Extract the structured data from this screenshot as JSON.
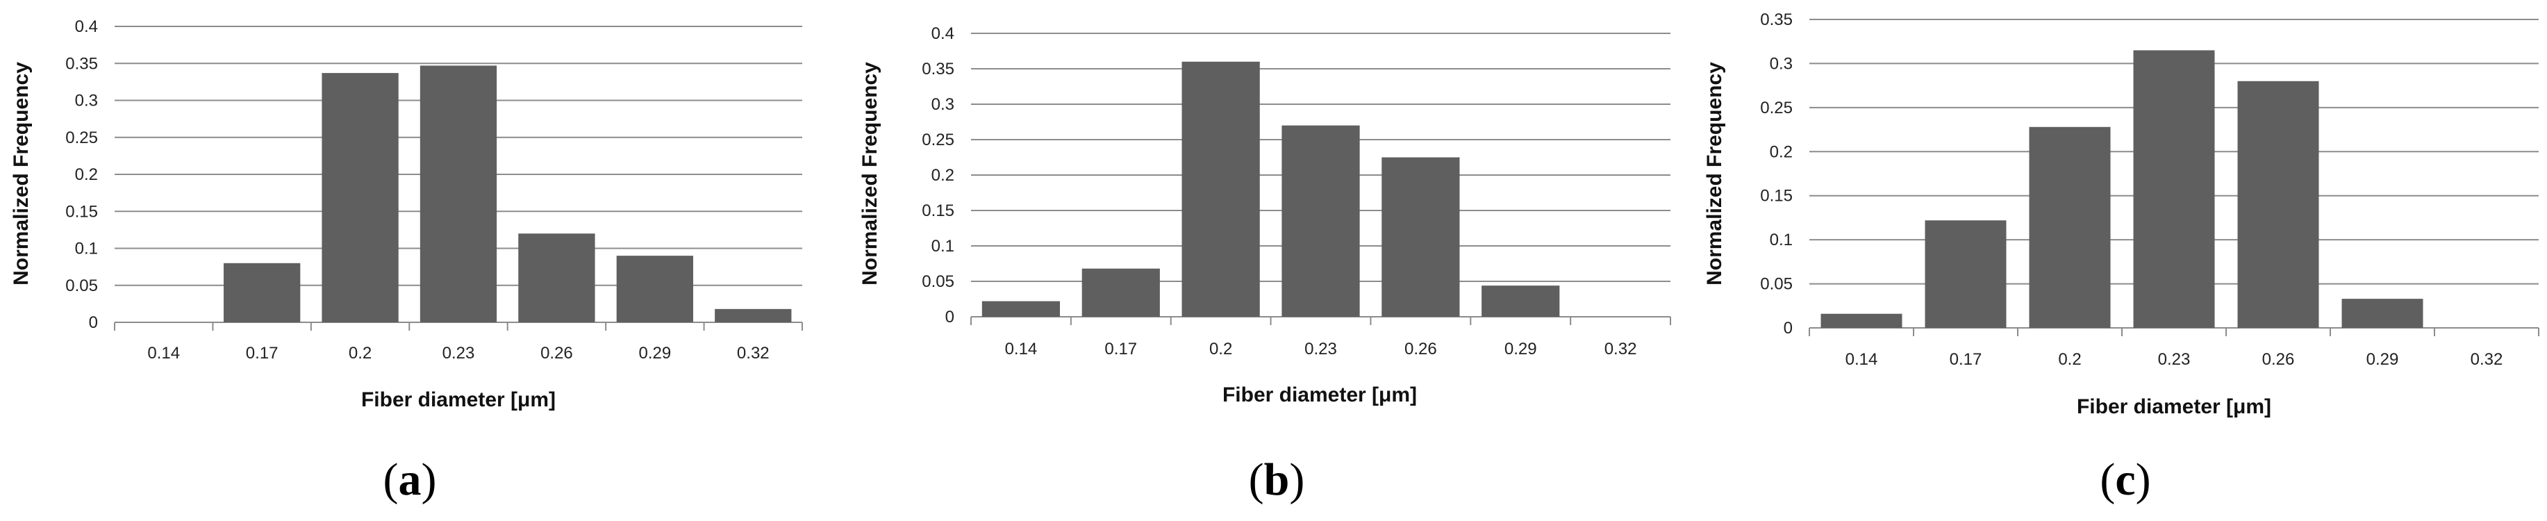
{
  "chart_data": [
    {
      "type": "bar",
      "panel_label": "a",
      "categories": [
        "0.14",
        "0.17",
        "0.2",
        "0.23",
        "0.26",
        "0.29",
        "0.32"
      ],
      "values": [
        0,
        0.08,
        0.337,
        0.347,
        0.12,
        0.09,
        0.018
      ],
      "ylim": [
        0,
        0.4
      ],
      "yticks": [
        "0",
        "0.05",
        "0.1",
        "0.15",
        "0.2",
        "0.25",
        "0.3",
        "0.35",
        "0.4"
      ],
      "xlabel": "Fiber diameter [μm]",
      "ylabel": "Normalized Frequency",
      "grid": true,
      "bar_color": "#5f5f5f"
    },
    {
      "type": "bar",
      "panel_label": "b",
      "categories": [
        "0.14",
        "0.17",
        "0.2",
        "0.23",
        "0.26",
        "0.29",
        "0.32"
      ],
      "values": [
        0.022,
        0.068,
        0.36,
        0.27,
        0.225,
        0.044,
        0
      ],
      "ylim": [
        0,
        0.4
      ],
      "yticks": [
        "0",
        "0.05",
        "0.1",
        "0.15",
        "0.2",
        "0.25",
        "0.3",
        "0.35",
        "0.4"
      ],
      "xlabel": "Fiber diameter [μm]",
      "ylabel": "Normalized Frequency",
      "grid": true,
      "bar_color": "#5f5f5f"
    },
    {
      "type": "bar",
      "panel_label": "c",
      "categories": [
        "0.14",
        "0.17",
        "0.2",
        "0.23",
        "0.26",
        "0.29",
        "0.32"
      ],
      "values": [
        0.016,
        0.122,
        0.228,
        0.315,
        0.28,
        0.033,
        0
      ],
      "ylim": [
        0,
        0.35
      ],
      "yticks": [
        "0",
        "0.05",
        "0.1",
        "0.15",
        "0.2",
        "0.25",
        "0.3",
        "0.35"
      ],
      "xlabel": "Fiber diameter [μm]",
      "ylabel": "Normalized Frequency",
      "grid": true,
      "bar_color": "#5f5f5f"
    }
  ]
}
